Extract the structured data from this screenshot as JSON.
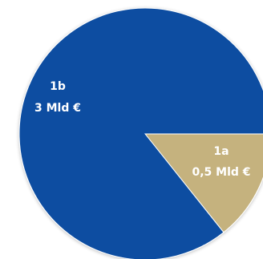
{
  "chart_data": {
    "type": "pie",
    "title": "",
    "slices": [
      {
        "label": "1a",
        "value_label": "0,5 Mld €",
        "value": 0.5,
        "color": "#c5b27e"
      },
      {
        "label": "1b",
        "value_label": "3 Mld €",
        "value": 3,
        "color": "#0b4da1"
      }
    ],
    "background": "#ffffff"
  }
}
